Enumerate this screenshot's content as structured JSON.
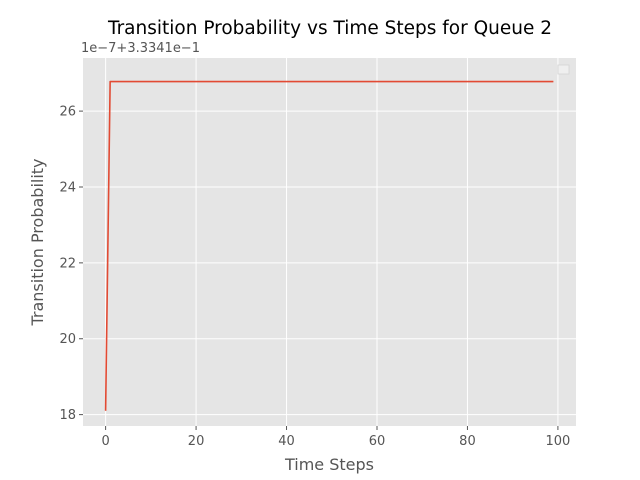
{
  "chart_data": {
    "type": "line",
    "title": "Transition Probability vs Time Steps for Queue 2",
    "xlabel": "Time Steps",
    "ylabel": "Transition Probability",
    "y_offset_label": "1e−7+3.3341e−1",
    "xlim": [
      -5,
      104
    ],
    "ylim": [
      17.7,
      27.4
    ],
    "xticks": [
      0,
      20,
      40,
      60,
      80,
      100
    ],
    "yticks": [
      18,
      20,
      22,
      24,
      26
    ],
    "grid": true,
    "legend": "top-right (empty)",
    "style": "ggplot",
    "series": [
      {
        "color": "#E24A33",
        "x": [
          0,
          1,
          2,
          10,
          20,
          30,
          40,
          50,
          60,
          70,
          80,
          90,
          99
        ],
        "y": [
          18.1,
          26.78,
          26.78,
          26.78,
          26.78,
          26.78,
          26.78,
          26.78,
          26.78,
          26.78,
          26.78,
          26.78,
          26.78
        ]
      }
    ]
  },
  "colors": {
    "plot_bg": "#E5E5E5",
    "grid": "#FFFFFF",
    "text": "#555555",
    "line": "#E24A33"
  }
}
